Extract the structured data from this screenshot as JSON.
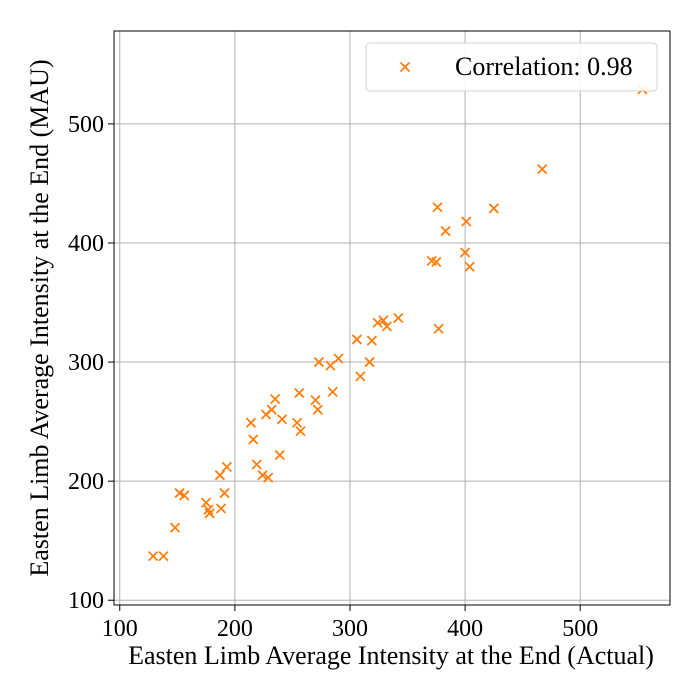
{
  "chart_data": {
    "type": "scatter",
    "xlabel": "Easten Limb Average Intensity at the End (Actual)",
    "ylabel": "Easten Limb Average Intensity at the End (MAU)",
    "xlim": [
      95,
      578
    ],
    "ylim": [
      96,
      578
    ],
    "xticks": [
      100,
      200,
      300,
      400,
      500
    ],
    "yticks": [
      100,
      200,
      300,
      400,
      500
    ],
    "grid": true,
    "legend_placement": "top-right",
    "marker": "x",
    "series": [
      {
        "name": "Correlation: 0.98",
        "color": "#ff7f0e",
        "points": [
          [
            129,
            137
          ],
          [
            138,
            137
          ],
          [
            148,
            161
          ],
          [
            152,
            190
          ],
          [
            156,
            188
          ],
          [
            175,
            182
          ],
          [
            177,
            176
          ],
          [
            178,
            173
          ],
          [
            187,
            205
          ],
          [
            188,
            177
          ],
          [
            191,
            190
          ],
          [
            193,
            212
          ],
          [
            214,
            249
          ],
          [
            216,
            235
          ],
          [
            219,
            214
          ],
          [
            224,
            205
          ],
          [
            227,
            256
          ],
          [
            229,
            203
          ],
          [
            232,
            260
          ],
          [
            235,
            269
          ],
          [
            239,
            222
          ],
          [
            241,
            252
          ],
          [
            254,
            249
          ],
          [
            256,
            274
          ],
          [
            257,
            242
          ],
          [
            270,
            268
          ],
          [
            272,
            260
          ],
          [
            273,
            300
          ],
          [
            283,
            297
          ],
          [
            285,
            275
          ],
          [
            290,
            303
          ],
          [
            306,
            319
          ],
          [
            309,
            288
          ],
          [
            317,
            300
          ],
          [
            319,
            318
          ],
          [
            324,
            333
          ],
          [
            329,
            335
          ],
          [
            332,
            330
          ],
          [
            342,
            337
          ],
          [
            371,
            385
          ],
          [
            375,
            384
          ],
          [
            376,
            430
          ],
          [
            377,
            328
          ],
          [
            383,
            410
          ],
          [
            400,
            392
          ],
          [
            401,
            418
          ],
          [
            404,
            380
          ],
          [
            425,
            429
          ],
          [
            467,
            462
          ],
          [
            554,
            529
          ]
        ]
      }
    ]
  }
}
